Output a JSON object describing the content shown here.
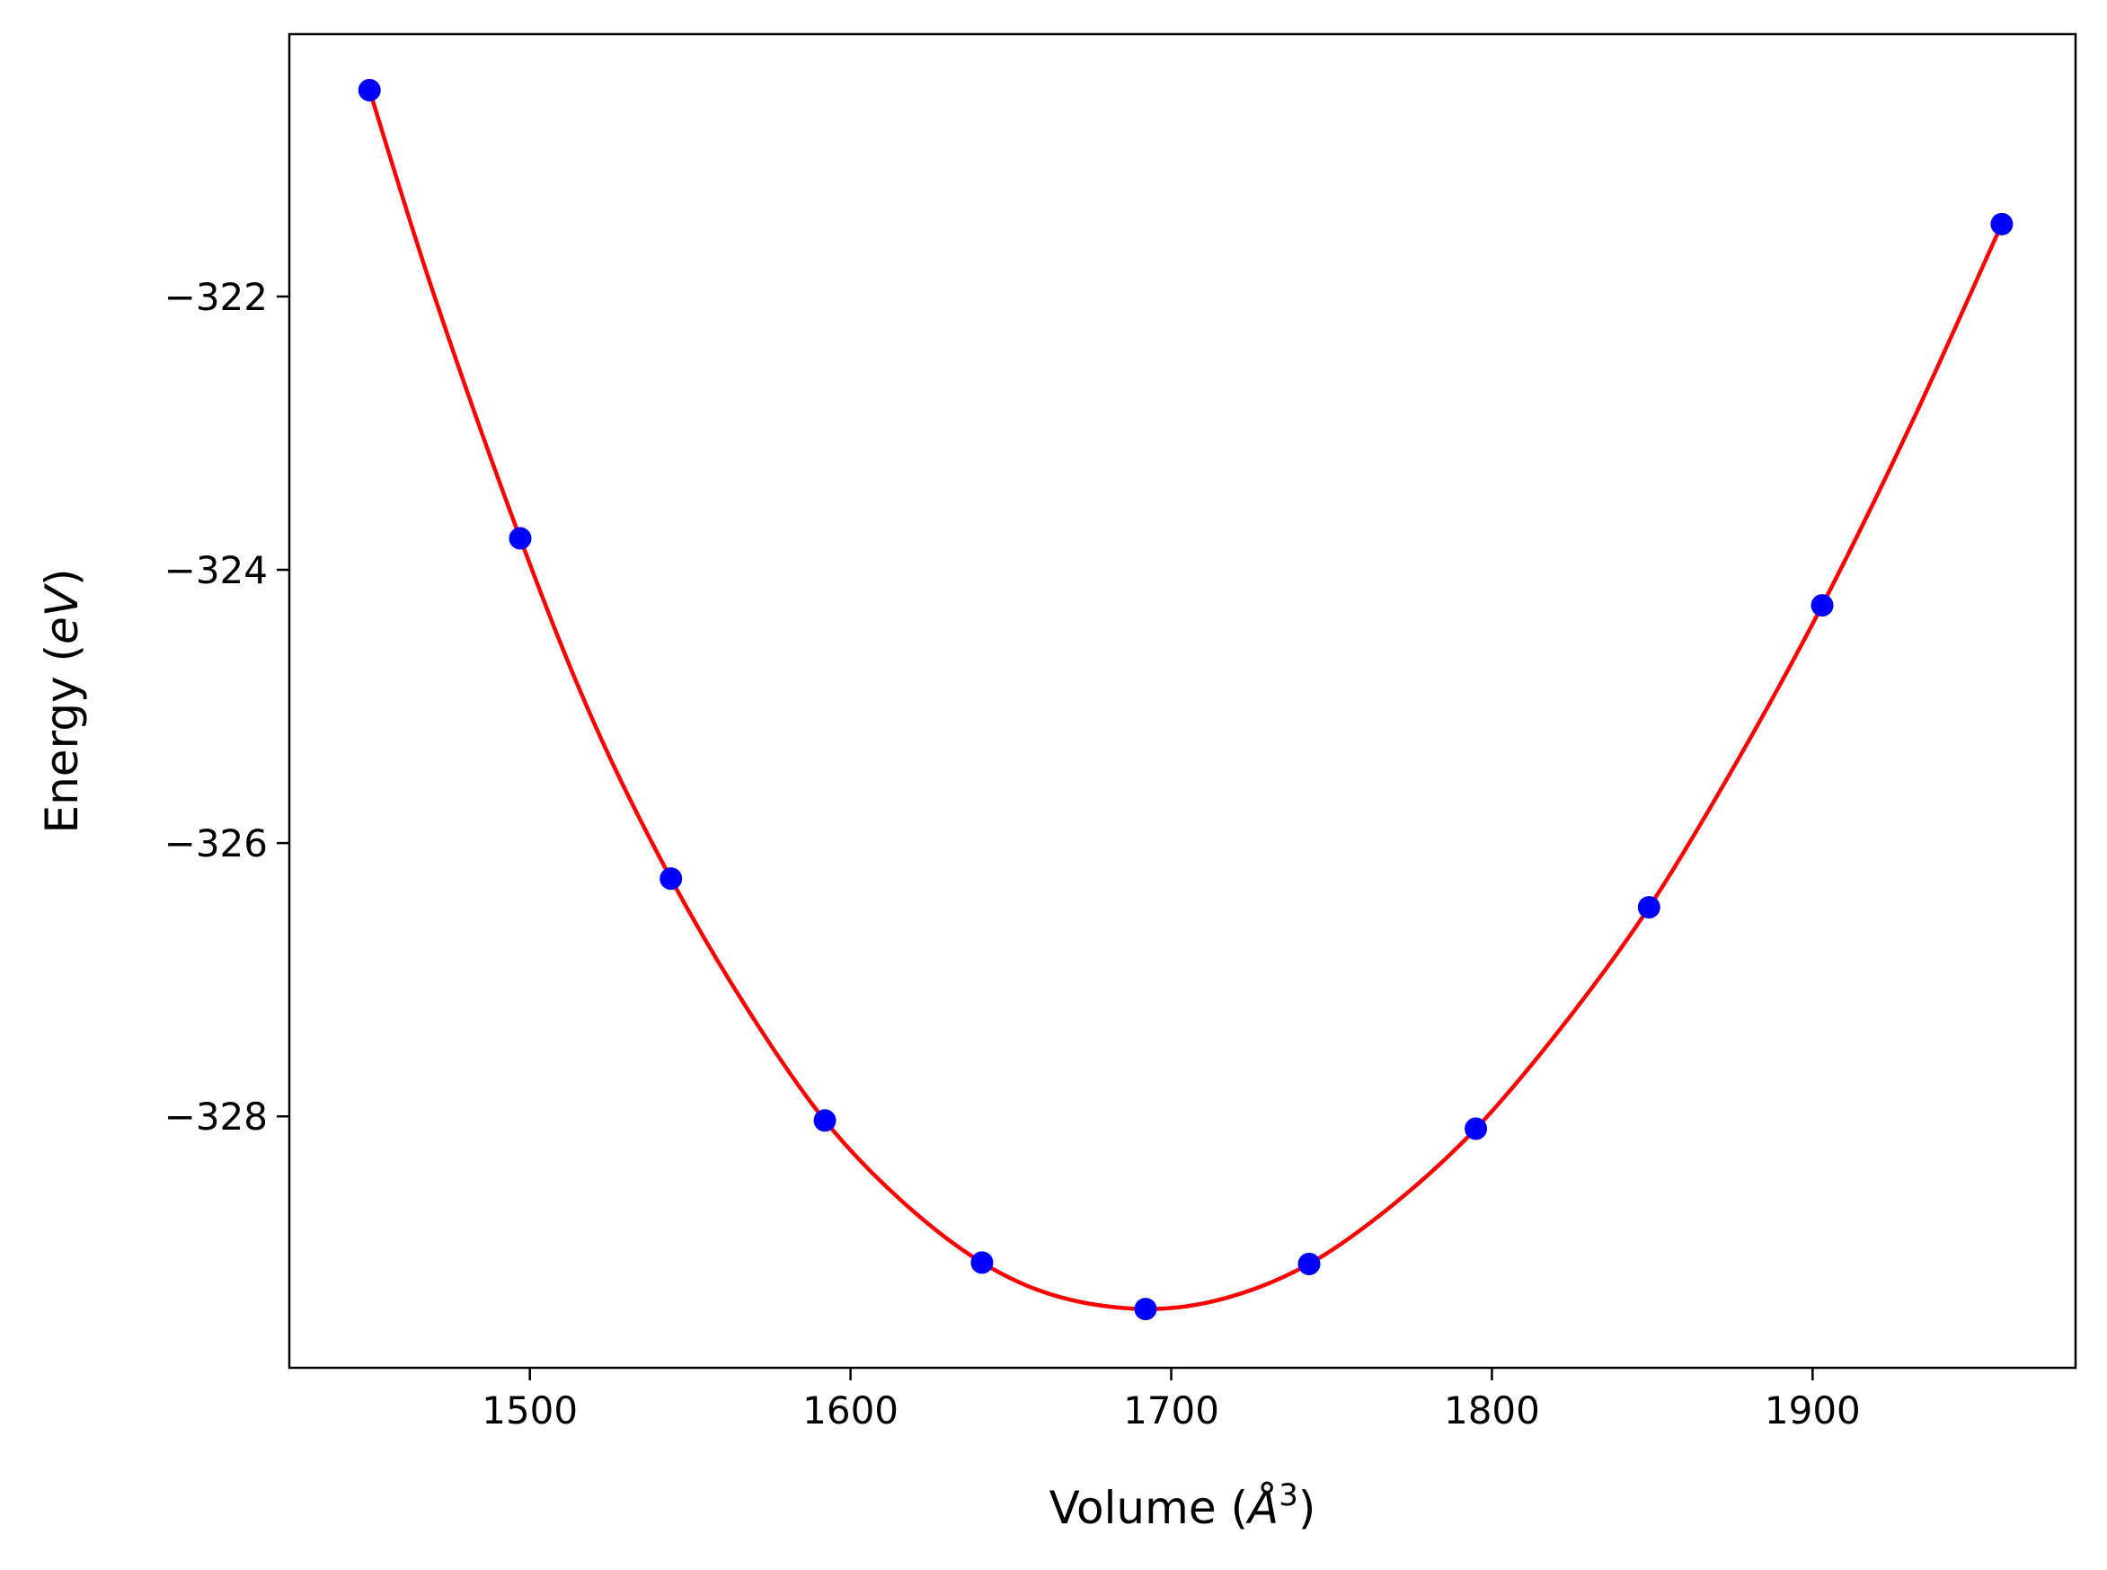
{
  "chart_data": {
    "type": "scatter",
    "xlabel_text": "Volume (",
    "xlabel_unit": "Å",
    "xlabel_power": "3",
    "xlabel_close": ")",
    "ylabel_text": "Energy (",
    "ylabel_unit": "eV",
    "ylabel_close": ")",
    "xlim": [
      1425,
      1982
    ],
    "ylim": [
      -329.84,
      -320.08
    ],
    "xticks": [
      1500,
      1600,
      1700,
      1800,
      1900
    ],
    "yticks": [
      -322,
      -324,
      -326,
      -328
    ],
    "xtick_labels": [
      "1500",
      "1600",
      "1700",
      "1800",
      "1900"
    ],
    "ytick_labels": [
      "−322",
      "−324",
      "−326",
      "−328"
    ],
    "grid": false,
    "series": [
      {
        "kind": "points",
        "color": "#0000ff",
        "x": [
          1450,
          1497,
          1544,
          1592,
          1641,
          1692,
          1743,
          1795,
          1849,
          1903,
          1959
        ],
        "y": [
          -320.49,
          -323.77,
          -326.26,
          -328.03,
          -329.07,
          -329.41,
          -329.08,
          -328.09,
          -326.47,
          -324.26,
          -321.47
        ]
      },
      {
        "kind": "fit",
        "color": "#ff0000",
        "x": [
          1450,
          1470,
          1497,
          1520,
          1544,
          1568,
          1592,
          1616,
          1641,
          1665,
          1692,
          1717,
          1743,
          1769,
          1795,
          1822,
          1849,
          1876,
          1903,
          1931,
          1959
        ],
        "y": [
          -320.49,
          -321.98,
          -323.77,
          -325.12,
          -326.26,
          -327.22,
          -328.03,
          -328.62,
          -329.07,
          -329.32,
          -329.41,
          -329.33,
          -329.08,
          -328.65,
          -328.09,
          -327.34,
          -326.47,
          -325.42,
          -324.26,
          -322.92,
          -321.47
        ]
      }
    ]
  }
}
